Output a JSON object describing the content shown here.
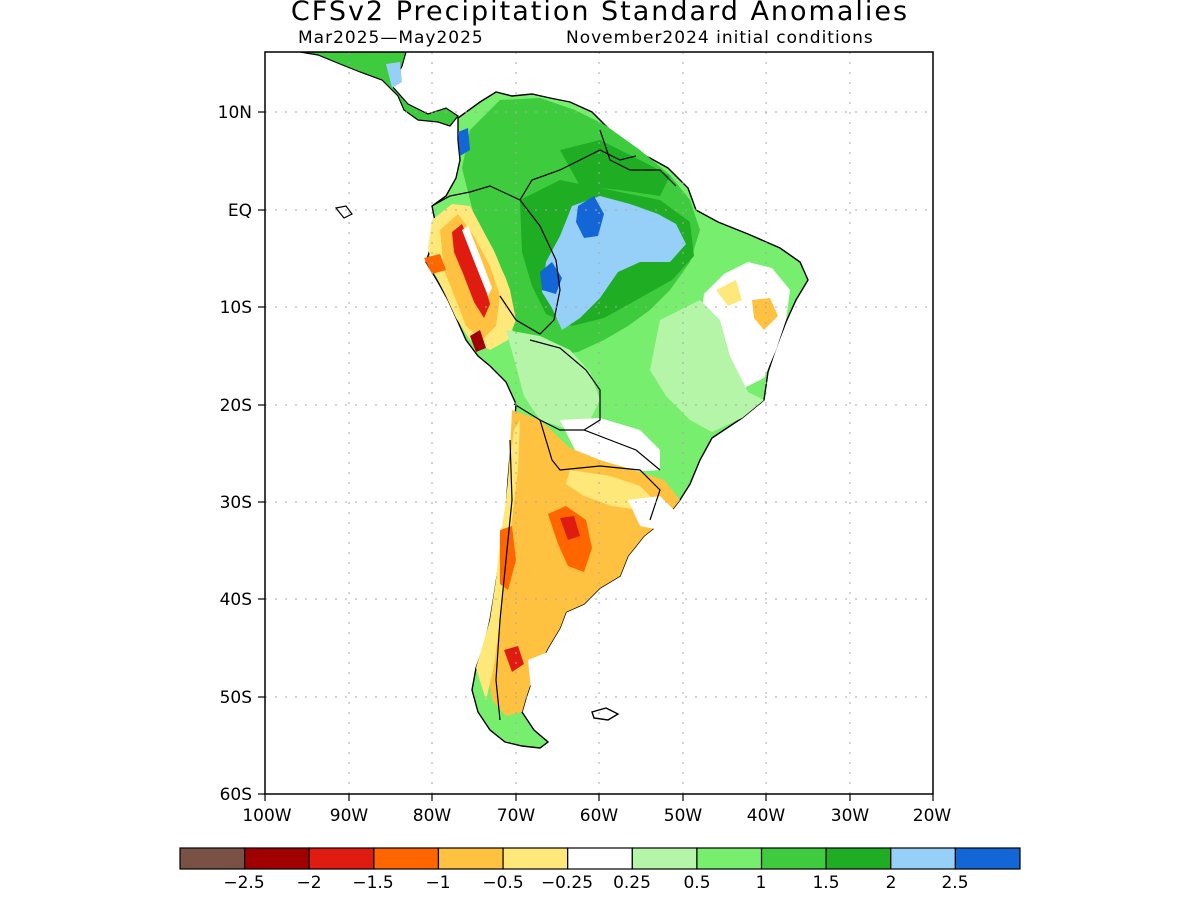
{
  "title": "CFSv2 Precipitation Standard Anomalies",
  "subtitle_left": "Mar2025—May2025",
  "subtitle_right": "November2024 initial conditions",
  "map": {
    "lat_range": [
      -60,
      5
    ],
    "lon_range": [
      -100,
      -20
    ],
    "lat_labels": [
      "10N",
      "EQ",
      "10S",
      "20S",
      "30S",
      "40S",
      "50S",
      "60S"
    ],
    "lon_labels": [
      "100W",
      "90W",
      "80W",
      "70W",
      "60W",
      "50W",
      "40W",
      "30W",
      "20W"
    ],
    "grid": "dotted",
    "field": "precipitation standard anomaly",
    "regions": [
      {
        "area": "northern South America / Amazon",
        "anomaly": "above normal (0.5 to 2.5)"
      },
      {
        "area": "central Amazon basin",
        "anomaly": "strongly above (2 to 2.5)"
      },
      {
        "area": "Andes of Ecuador and Peru",
        "anomaly": "mixed, locally -2 to 2"
      },
      {
        "area": "northeast Brazil",
        "anomaly": "near normal to slightly above"
      },
      {
        "area": "Argentina, Uruguay, Chile",
        "anomaly": "below normal (-0.25 to -1.5)"
      },
      {
        "area": "central Argentina",
        "anomaly": "locally -1.5"
      }
    ]
  },
  "colorbar": {
    "colors": [
      "#7a5245",
      "#a00000",
      "#e01b10",
      "#ff6600",
      "#ffc140",
      "#ffe87a",
      "#ffffff",
      "#b4f5a8",
      "#78ee6e",
      "#3ecb3e",
      "#1fad24",
      "#96d0f8",
      "#1366d6"
    ],
    "labels": [
      "−2.5",
      "−2",
      "−1.5",
      "−1",
      "−0.5",
      "−0.25",
      "0.25",
      "0.5",
      "1",
      "1.5",
      "2",
      "2.5"
    ]
  }
}
